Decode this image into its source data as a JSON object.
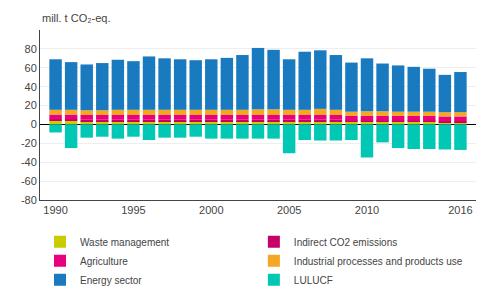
{
  "chart_data": {
    "type": "bar",
    "stacked": true,
    "ylabel": "mill. t CO₂-eq.",
    "x": [
      1990,
      1991,
      1992,
      1993,
      1994,
      1995,
      1996,
      1997,
      1998,
      1999,
      2000,
      2001,
      2002,
      2003,
      2004,
      2005,
      2006,
      2007,
      2008,
      2009,
      2010,
      2011,
      2012,
      2013,
      2014,
      2015,
      2016
    ],
    "series": [
      {
        "name": "Waste management",
        "color": "#c8cc00",
        "values": [
          4.0,
          4.0,
          3.5,
          3.5,
          3.5,
          3.5,
          3.5,
          3.5,
          3.5,
          3.5,
          3.5,
          3.5,
          3.5,
          3.5,
          3.5,
          3.5,
          3.5,
          3.5,
          3.5,
          3.0,
          3.0,
          3.0,
          3.0,
          3.0,
          3.0,
          2.5,
          2.5
        ]
      },
      {
        "name": "Indirect CO2 emissions",
        "color": "#c8006a",
        "values": [
          1.5,
          1.5,
          1.5,
          1.5,
          1.5,
          1.5,
          1.5,
          1.5,
          1.5,
          1.5,
          1.5,
          1.5,
          1.5,
          1.5,
          1.5,
          1.5,
          1.5,
          1.5,
          1.5,
          1.0,
          1.0,
          1.0,
          1.0,
          1.0,
          1.0,
          1.0,
          1.0
        ]
      },
      {
        "name": "Agriculture",
        "color": "#e8007d",
        "values": [
          5.0,
          5.0,
          5.0,
          5.0,
          5.0,
          5.0,
          5.0,
          5.0,
          5.0,
          5.0,
          5.0,
          5.0,
          5.0,
          5.0,
          5.0,
          5.0,
          5.0,
          5.0,
          5.0,
          5.0,
          5.0,
          5.0,
          5.0,
          5.0,
          5.0,
          5.0,
          5.0
        ]
      },
      {
        "name": "Industrial processes and products use",
        "color": "#f5a623",
        "values": [
          5.0,
          5.0,
          5.0,
          5.0,
          5.5,
          5.5,
          5.5,
          5.5,
          5.5,
          5.5,
          5.5,
          5.5,
          5.5,
          6.0,
          6.0,
          5.5,
          5.5,
          6.5,
          5.5,
          4.5,
          5.0,
          5.0,
          4.5,
          4.5,
          4.5,
          4.5,
          4.5
        ]
      },
      {
        "name": "Energy sector",
        "color": "#1a7abf",
        "values": [
          53.5,
          50.5,
          48.5,
          50.0,
          53.0,
          51.5,
          56.5,
          54.5,
          53.5,
          52.5,
          53.5,
          55.0,
          58.0,
          65.0,
          63.0,
          53.5,
          61.5,
          62.0,
          58.0,
          52.0,
          56.0,
          50.5,
          49.0,
          47.5,
          45.5,
          39.5,
          42.5
        ]
      },
      {
        "name": "LULUCF",
        "color": "#00c8b4",
        "values": [
          -8.5,
          -25.0,
          -14.0,
          -13.0,
          -15.0,
          -13.0,
          -16.5,
          -14.0,
          -14.0,
          -13.0,
          -15.0,
          -15.0,
          -15.0,
          -15.0,
          -15.0,
          -30.5,
          -16.5,
          -17.0,
          -17.0,
          -16.5,
          -35.0,
          -19.0,
          -25.0,
          -26.0,
          -26.0,
          -26.5,
          -27.0
        ]
      }
    ],
    "xlim": [
      1989,
      2017
    ],
    "xticks": [
      1990,
      1995,
      2000,
      2005,
      2010,
      2016
    ],
    "ylim": [
      -80,
      100
    ],
    "yticks": [
      -80,
      -60,
      -40,
      -20,
      0,
      20,
      40,
      60,
      80
    ],
    "grid": true,
    "legend": "bottom"
  }
}
